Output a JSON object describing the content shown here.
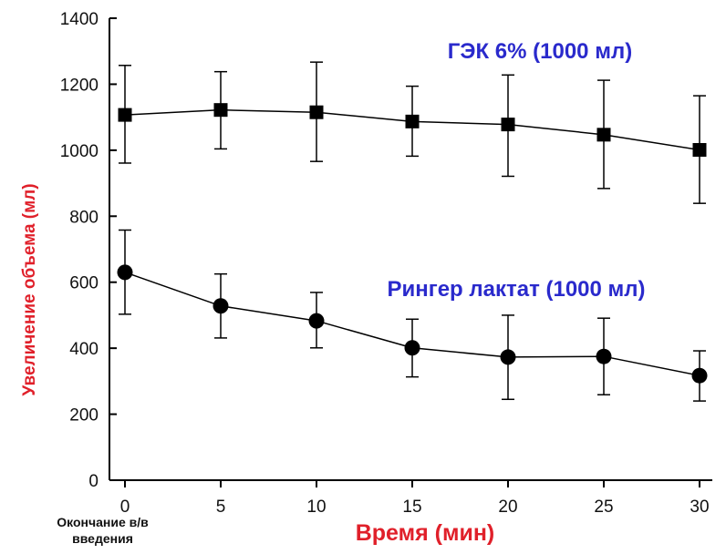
{
  "chart_data": {
    "type": "line",
    "xlabel": "Время (мин)",
    "ylabel": "Увеличение объема (мл)",
    "x": [
      0,
      5,
      10,
      15,
      20,
      25,
      30
    ],
    "x_ticks": [
      0,
      5,
      10,
      15,
      20,
      25,
      30
    ],
    "x_zero_note": "Окончание в/в введения",
    "y_ticks": [
      0,
      200,
      400,
      600,
      800,
      1000,
      1200,
      1400
    ],
    "xlim": [
      -1,
      31
    ],
    "ylim": [
      0,
      1400
    ],
    "grid": false,
    "colors": {
      "axis_title": "#e0202a",
      "series_label": "#2a2acc",
      "marks": "#000000"
    },
    "series": [
      {
        "name": "ГЭК 6% (1000 мл)",
        "marker": "square",
        "values": [
          1107,
          1122,
          1115,
          1087,
          1078,
          1047,
          1001
        ],
        "err_upper": [
          1257,
          1238,
          1267,
          1194,
          1228,
          1212,
          1165
        ],
        "err_lower": [
          961,
          1004,
          966,
          982,
          921,
          884,
          839
        ]
      },
      {
        "name": "Рингер лактат (1000 мл)",
        "marker": "circle",
        "values": [
          630,
          528,
          483,
          401,
          373,
          375,
          317
        ],
        "err_upper": [
          758,
          625,
          569,
          488,
          500,
          491,
          392
        ],
        "err_lower": [
          503,
          431,
          401,
          313,
          245,
          259,
          240
        ]
      }
    ]
  }
}
